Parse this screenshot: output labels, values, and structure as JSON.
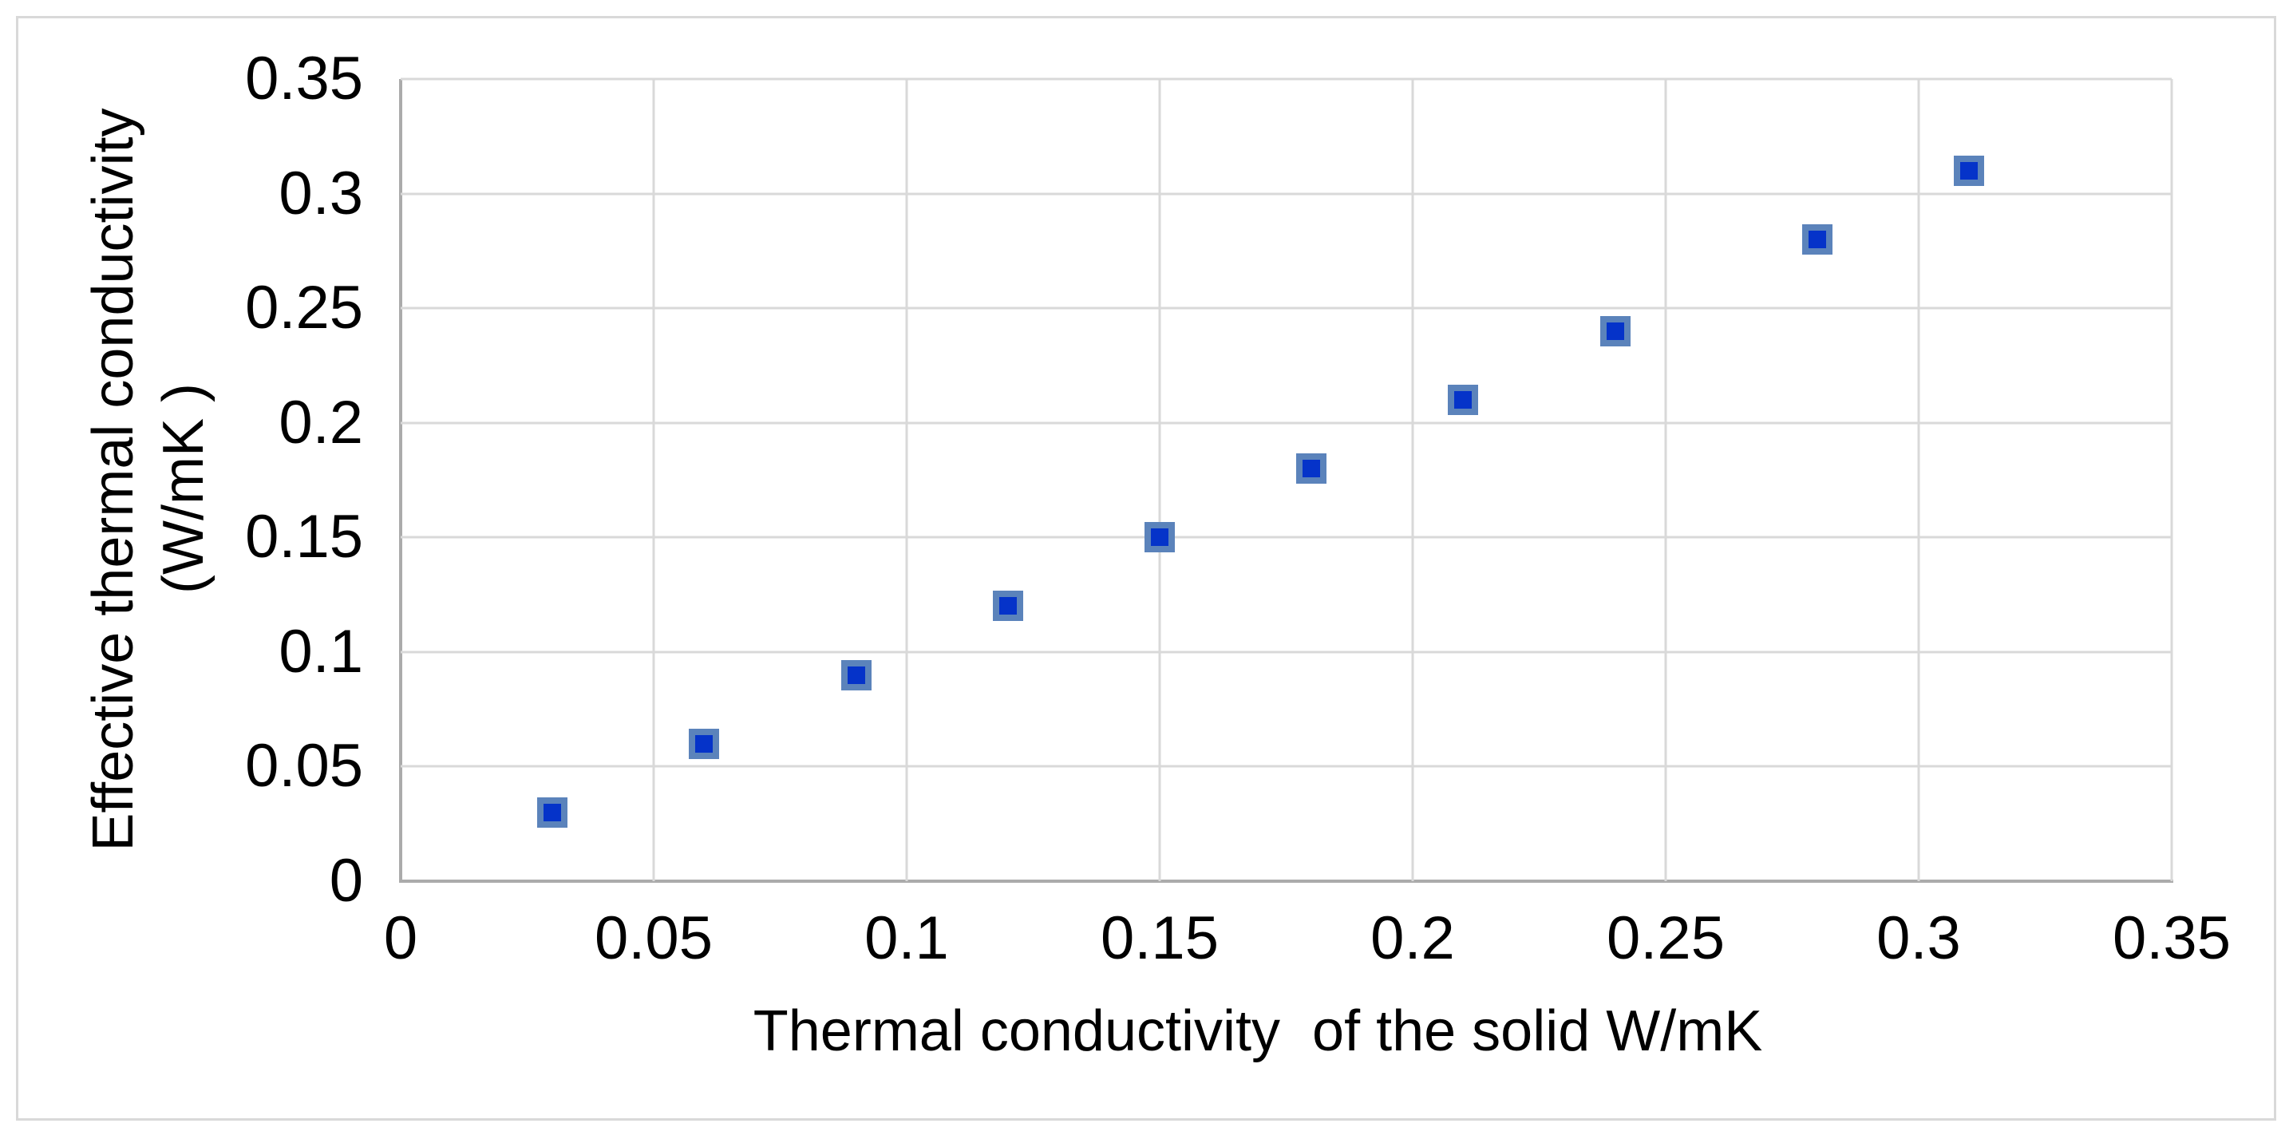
{
  "chart_data": {
    "type": "scatter",
    "title": "",
    "xlabel": "Thermal conductivity  of the solid W/mK",
    "ylabel_line1": "Effective thermal conductivity",
    "ylabel_line2": "(W/mK )",
    "xlim": [
      0,
      0.35
    ],
    "ylim": [
      0,
      0.35
    ],
    "x_ticks": [
      0,
      0.05,
      0.1,
      0.15,
      0.2,
      0.25,
      0.3,
      0.35
    ],
    "x_tick_labels": [
      "0",
      "0.05",
      "0.1",
      "0.15",
      "0.2",
      "0.25",
      "0.3",
      "0.35"
    ],
    "y_ticks": [
      0,
      0.05,
      0.1,
      0.15,
      0.2,
      0.25,
      0.3,
      0.35
    ],
    "y_tick_labels": [
      "0",
      "0.05",
      "0.1",
      "0.15",
      "0.2",
      "0.25",
      "0.3",
      "0.35"
    ],
    "grid": true,
    "legend": false,
    "marker_shape": "square",
    "series": [
      {
        "name": "Effective thermal conductivity",
        "points": [
          [
            0.03,
            0.03
          ],
          [
            0.06,
            0.06
          ],
          [
            0.09,
            0.09
          ],
          [
            0.12,
            0.12
          ],
          [
            0.15,
            0.15
          ],
          [
            0.18,
            0.18
          ],
          [
            0.21,
            0.21
          ],
          [
            0.24,
            0.24
          ],
          [
            0.28,
            0.28
          ],
          [
            0.31,
            0.31
          ]
        ]
      }
    ]
  },
  "colors": {
    "marker_fill": "#0533c9",
    "marker_border": "#5b83bb",
    "gridline": "#d9d9d9",
    "axis_line": "#ababab",
    "figure_border": "#d9d9d9",
    "text": "#000000",
    "background": "#ffffff"
  }
}
